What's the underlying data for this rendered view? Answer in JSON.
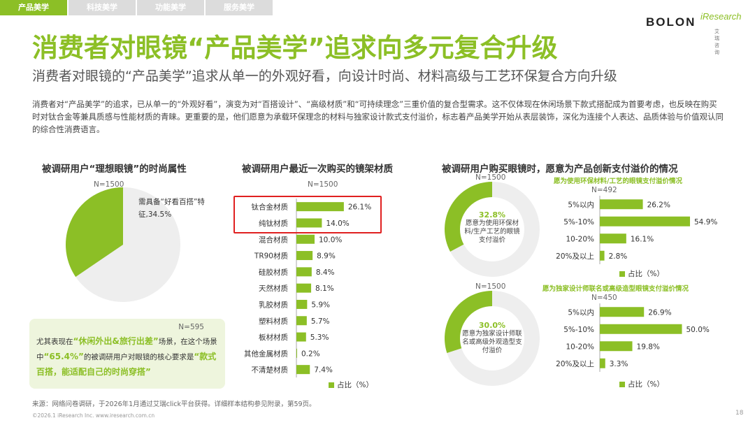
{
  "tabs": [
    "产品美学",
    "科技美学",
    "功能美学",
    "服务美学"
  ],
  "logo": {
    "brand": "BOLON",
    "partner": "iResearch",
    "partner_cn": "艾 瑞 咨 询"
  },
  "title": "消费者对眼镜“产品美学”追求向多元复合升级",
  "subtitle": "消费者对眼镜的“产品美学”追求从单一的外观好看，向设计时尚、材料高级与工艺环保复合方向升级",
  "intro": "消费者对“产品美学”的追求，已从单一的“外观好看”，演变为对“百搭设计”、“高级材质”和“可持续理念”三重价值的复合型需求。这不仅体现在休闲场景下款式搭配成为首要考虑，也反映在购买时对钛合金等兼具质感与性能材质的青睐。更重要的是，他们愿意为承载环保理念的材料与独家设计款式支付溢价，标志着产品美学开始从表层装饰，深化为连接个人表达、品质体验与价值观认同的综合性消费语言。",
  "colors": {
    "accent": "#8cbf26",
    "light": "#eeeeee",
    "highlight_box": "#e02020"
  },
  "left_chart": {
    "title": "被调研用户“理想眼镜”的时尚属性",
    "n": "N=1500"
  },
  "note": {
    "n": "N=595",
    "p1": "尤其表现在",
    "h1": "“休闲外出&旅行出差”",
    "p2": "场景，在这个场景中",
    "h2": "“65.4%”",
    "p3": "的被调研用户对眼镜的核心要求是",
    "h3": "“款式百搭，能适配自己的时尚穿搭”"
  },
  "mid_chart": {
    "title": "被调研用户最近一次购买的镜架材质",
    "n": "N=1500",
    "legend": "占比（%）"
  },
  "right": {
    "title": "被调研用户购买眼镜时，愿意为产品创新支付溢价的情况",
    "top": {
      "n_pie": "N=1500",
      "pie_pct": "32.8%",
      "pie_text": "愿意为使用环保材料/生产工艺的眼镜支付溢价",
      "subhead": "愿为使用环保材料/工艺的眼镜支付溢价情况",
      "n_bar": "N=492",
      "legend": "占比（%）"
    },
    "bottom": {
      "n_pie": "N=1500",
      "pie_pct": "30.0%",
      "pie_text": "愿意为独家设计师联名或高级外观造型支付溢价",
      "subhead": "愿为独家设计师联名或高级造型眼镜支付溢价情况",
      "n_bar": "N=450",
      "legend": "占比（%）"
    }
  },
  "chart_data": [
    {
      "type": "pie",
      "labels": [
        "需具备“好看百搭”特征"
      ],
      "values": [
        34.5
      ],
      "rest": 65.5,
      "value_labels": [
        "需具备“好看百搭”特征,34.5%"
      ]
    },
    {
      "type": "bar",
      "orientation": "horizontal",
      "categories": [
        "钛合金材质",
        "纯钛材质",
        "混合材质",
        "TR90材质",
        "硅胶材质",
        "天然材质",
        "乳胶材质",
        "塑料材质",
        "板材材质",
        "其他金属材质",
        "不清楚材质"
      ],
      "values": [
        26.1,
        14.0,
        10.0,
        8.9,
        8.4,
        8.1,
        5.9,
        5.7,
        5.3,
        0.2,
        7.4
      ],
      "unit": "%"
    },
    {
      "type": "pie",
      "labels": [
        "愿意为使用环保材料/生产工艺的眼镜支付溢价"
      ],
      "values": [
        32.8
      ],
      "rest": 67.2
    },
    {
      "type": "bar",
      "orientation": "horizontal",
      "categories": [
        "5%以内",
        "5%-10%",
        "10-20%",
        "20%及以上"
      ],
      "values": [
        26.2,
        54.9,
        16.1,
        2.8
      ],
      "unit": "%"
    },
    {
      "type": "pie",
      "labels": [
        "愿意为独家设计师联名或高级外观造型支付溢价"
      ],
      "values": [
        30.0
      ],
      "rest": 70.0
    },
    {
      "type": "bar",
      "orientation": "horizontal",
      "categories": [
        "5%以内",
        "5%-10%",
        "10-20%",
        "20%及以上"
      ],
      "values": [
        26.9,
        50.0,
        19.8,
        3.3
      ],
      "unit": "%"
    }
  ],
  "footer": {
    "source": "来源：网络问卷调研，于2026年1月通过艾瑞click平台获得。详细样本结构参见附录，第59页。",
    "copyright": "©2026.1 iResearch Inc.                  www.iresearch.com.cn",
    "page": "18"
  }
}
